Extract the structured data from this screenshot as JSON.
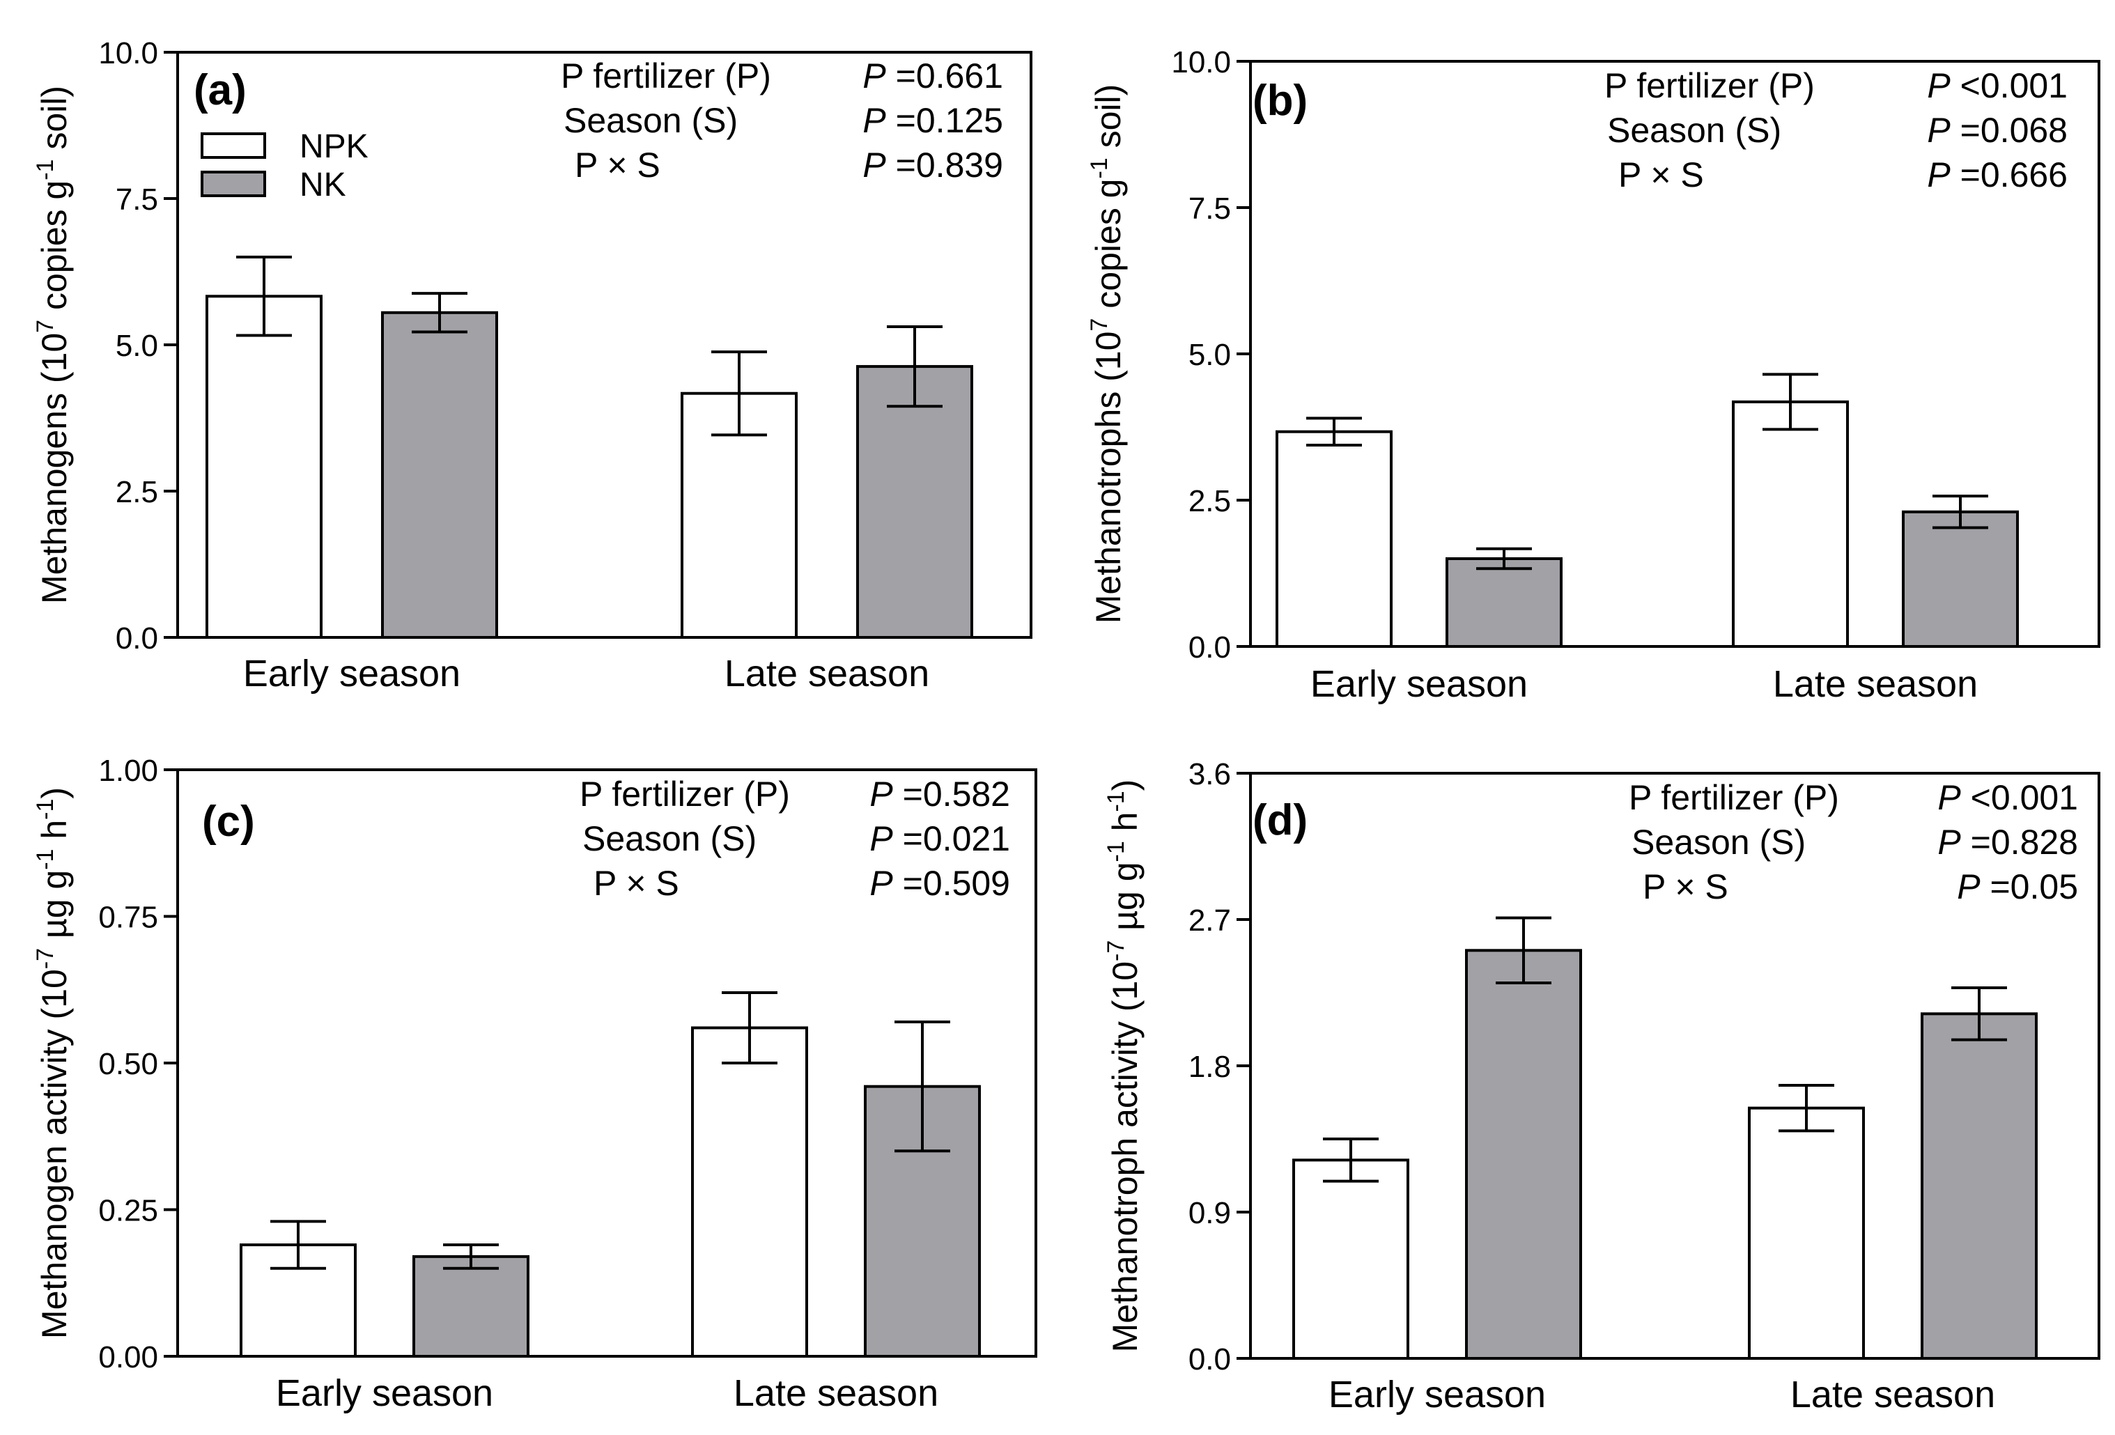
{
  "colors": {
    "npk": "#ffffff",
    "nk": "#a2a1a6",
    "stroke": "#000000"
  },
  "legend": [
    {
      "name": "NPK",
      "color": "#ffffff"
    },
    {
      "name": "NK",
      "color": "#a2a1a6"
    }
  ],
  "chart_data": [
    {
      "type": "bar",
      "panel": "(a)",
      "categories": [
        "Early season",
        "Late season"
      ],
      "series": [
        {
          "name": "NPK",
          "values": [
            5.83,
            4.17
          ],
          "errors": [
            0.67,
            0.71
          ]
        },
        {
          "name": "NK",
          "values": [
            5.55,
            4.63
          ],
          "errors": [
            0.33,
            0.68
          ]
        }
      ],
      "ylim": [
        0,
        10
      ],
      "yticks": [
        "0.0",
        "2.5",
        "5.0",
        "7.5",
        "10.0"
      ],
      "ylabel": {
        "pre": "Methanogens (10",
        "sup1": "7",
        "mid": " copies g",
        "sup2": "-1",
        "post": " soil)"
      },
      "stats": [
        {
          "label": "P fertilizer (P)",
          "p": "P",
          "value": " =0.661"
        },
        {
          "label": "Season (S)",
          "p": "P",
          "value": " =0.125"
        },
        {
          "label": "P × S",
          "p": "P",
          "value": " =0.839"
        }
      ]
    },
    {
      "type": "bar",
      "panel": "(b)",
      "categories": [
        "Early season",
        "Late season"
      ],
      "series": [
        {
          "name": "NPK",
          "values": [
            3.67,
            4.18
          ],
          "errors": [
            0.23,
            0.47
          ]
        },
        {
          "name": "NK",
          "values": [
            1.5,
            2.3
          ],
          "errors": [
            0.17,
            0.27
          ]
        }
      ],
      "ylim": [
        0,
        10
      ],
      "yticks": [
        "0.0",
        "2.5",
        "5.0",
        "7.5",
        "10.0"
      ],
      "ylabel": {
        "pre": "Methanotrophs (10",
        "sup1": "7",
        "mid": " copies g",
        "sup2": "-1",
        "post": " soil)"
      },
      "stats": [
        {
          "label": "P fertilizer (P)",
          "p": "P",
          "value": " <0.001"
        },
        {
          "label": "Season (S)",
          "p": "P",
          "value": " =0.068"
        },
        {
          "label": "P × S",
          "p": "P",
          "value": " =0.666"
        }
      ]
    },
    {
      "type": "bar",
      "panel": "(c)",
      "categories": [
        "Early season",
        "Late season"
      ],
      "series": [
        {
          "name": "NPK",
          "values": [
            0.19,
            0.56
          ],
          "errors": [
            0.04,
            0.06
          ]
        },
        {
          "name": "NK",
          "values": [
            0.17,
            0.46
          ],
          "errors": [
            0.02,
            0.11
          ]
        }
      ],
      "ylim": [
        0,
        1
      ],
      "yticks": [
        "0.00",
        "0.25",
        "0.50",
        "0.75",
        "1.00"
      ],
      "ylabel": {
        "pre": "Methanogen activity (10",
        "sup1": "-7",
        "mid": " µg g",
        "sup2": "-1",
        "mid2": " h",
        "sup3": "-1",
        "post": ")"
      },
      "stats": [
        {
          "label": "P fertilizer (P)",
          "p": "P",
          "value": " =0.582"
        },
        {
          "label": "Season (S)",
          "p": "P",
          "value": " =0.021"
        },
        {
          "label": "P × S",
          "p": "P",
          "value": " =0.509"
        }
      ]
    },
    {
      "type": "bar",
      "panel": "(d)",
      "categories": [
        "Early season",
        "Late season"
      ],
      "series": [
        {
          "name": "NPK",
          "values": [
            1.22,
            1.54
          ],
          "errors": [
            0.13,
            0.14
          ]
        },
        {
          "name": "NK",
          "values": [
            2.51,
            2.12
          ],
          "errors": [
            0.2,
            0.16
          ]
        }
      ],
      "ylim": [
        0,
        3.6
      ],
      "yticks": [
        "0.0",
        "0.9",
        "1.8",
        "2.7",
        "3.6"
      ],
      "ylabel": {
        "pre": "Methanotroph activity (10",
        "sup1": "-7",
        "mid": " µg g",
        "sup2": "-1",
        "mid2": " h",
        "sup3": "-1",
        "post": ")"
      },
      "stats": [
        {
          "label": "P fertilizer (P)",
          "p": "P",
          "value": " <0.001"
        },
        {
          "label": "Season (S)",
          "p": "P",
          "value": " =0.828"
        },
        {
          "label": "P × S",
          "p": "P",
          "value": " =0.05"
        }
      ]
    }
  ]
}
